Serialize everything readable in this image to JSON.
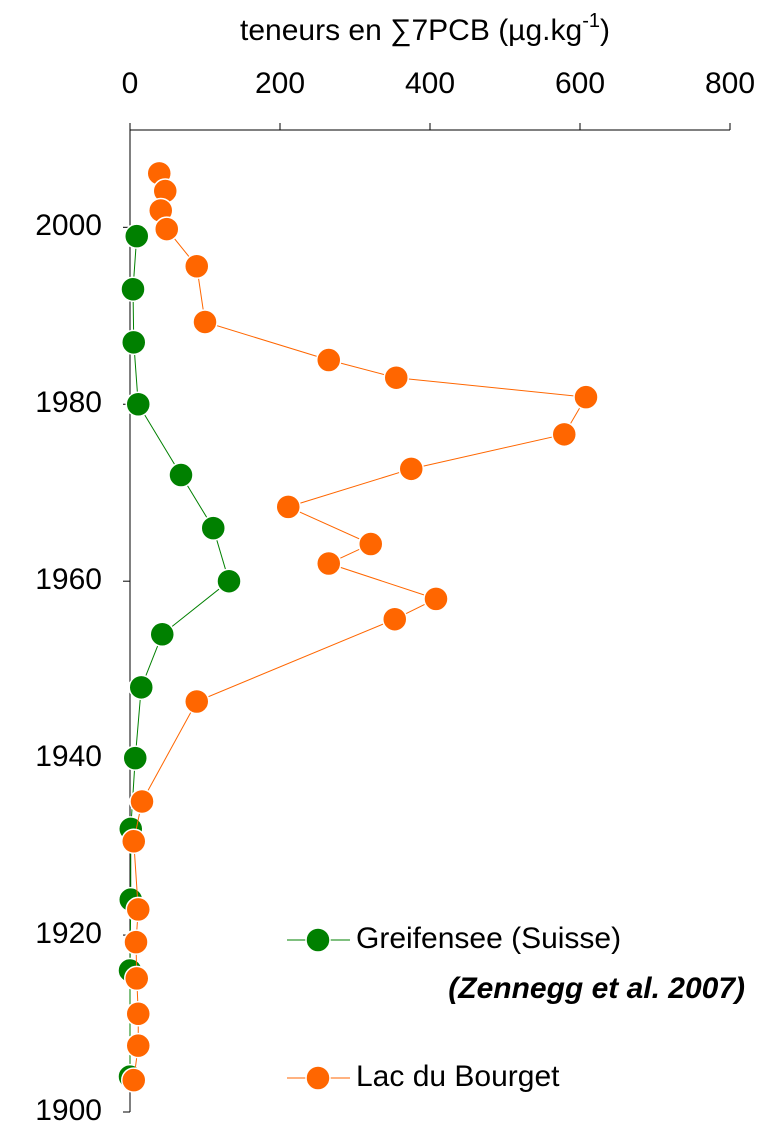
{
  "chart_data": {
    "type": "line",
    "title": {
      "text": "teneurs en ∑7PCB (µg.kg",
      "superscript": "-1",
      "suffix": ")"
    },
    "annotation": "(Zennegg et al. 2007)",
    "xlim": [
      0,
      800
    ],
    "xticks": [
      0,
      200,
      400,
      600,
      800
    ],
    "ylim": [
      1900,
      2011
    ],
    "yticks": [
      1900,
      1920,
      1940,
      1960,
      1980,
      2000
    ],
    "legend": "lower right",
    "series": [
      {
        "name": "Greifensee (Suisse)",
        "color": "#008000",
        "x": [
          9,
          4,
          5,
          11,
          68,
          111,
          132,
          43,
          15,
          7,
          1,
          1,
          0,
          0
        ],
        "values": [
          1999,
          1993,
          1987,
          1980,
          1972,
          1966,
          1960,
          1954,
          1948,
          1940,
          1932,
          1924,
          1916,
          1904
        ]
      },
      {
        "name": "Lac du Bourget",
        "color": "#ff6600",
        "x": [
          39,
          47,
          41,
          49,
          89,
          100,
          265,
          355,
          608,
          579,
          375,
          211,
          321,
          265,
          408,
          353,
          89,
          16,
          5,
          11,
          8,
          9,
          11,
          11,
          5
        ],
        "values": [
          2006.1,
          2004.1,
          2001.9,
          1999.8,
          1995.6,
          1989.3,
          1985,
          1983,
          1980.8,
          1976.6,
          1972.7,
          1968.4,
          1964.2,
          1962,
          1958,
          1955.7,
          1946.4,
          1935.1,
          1930.6,
          1922.9,
          1919.2,
          1915.1,
          1911.1,
          1907.5,
          1903.6
        ]
      }
    ]
  }
}
